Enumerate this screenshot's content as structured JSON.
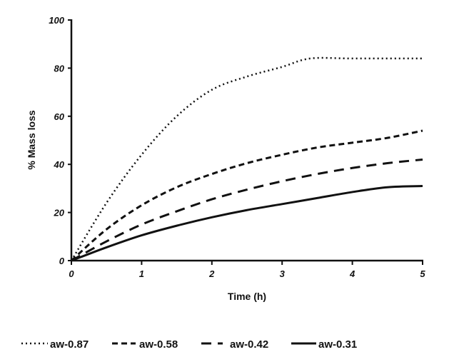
{
  "chart_data": {
    "type": "line",
    "title": "",
    "xlabel": "Time (h)",
    "ylabel": "%  Mass loss",
    "xlim": [
      0,
      5
    ],
    "ylim": [
      0,
      100
    ],
    "xticks": [
      "0",
      "1",
      "2",
      "3",
      "4",
      "5"
    ],
    "yticks": [
      "0",
      "20",
      "40",
      "60",
      "80",
      "100"
    ],
    "grid": false,
    "legend_position": "bottom",
    "series": [
      {
        "name": "aw-0.87",
        "style": "dotted",
        "x": [
          0,
          0.5,
          1,
          1.5,
          2,
          2.5,
          3,
          3.4,
          4,
          5
        ],
        "y": [
          0,
          24,
          44,
          60,
          71,
          76.5,
          80.5,
          84,
          84,
          84
        ]
      },
      {
        "name": "aw-0.58",
        "style": "short-dash",
        "x": [
          0,
          0.5,
          1,
          1.5,
          2,
          2.5,
          3,
          3.5,
          4,
          4.5,
          5
        ],
        "y": [
          0,
          13,
          23,
          30.5,
          36,
          40.5,
          44,
          47,
          49,
          51,
          54
        ]
      },
      {
        "name": "aw-0.42",
        "style": "long-dash",
        "x": [
          0,
          0.5,
          1,
          1.5,
          2,
          2.5,
          3,
          3.5,
          4,
          4.5,
          5
        ],
        "y": [
          0,
          8,
          15,
          20.5,
          25.5,
          29.5,
          33,
          36,
          38.5,
          40.5,
          42
        ]
      },
      {
        "name": "aw-0.31",
        "style": "solid",
        "x": [
          0,
          0.5,
          1,
          1.5,
          2,
          2.5,
          3,
          3.5,
          4,
          4.5,
          5
        ],
        "y": [
          0,
          5.5,
          10.5,
          14.5,
          18,
          21,
          23.5,
          26,
          28.5,
          30.5,
          31
        ]
      }
    ]
  }
}
